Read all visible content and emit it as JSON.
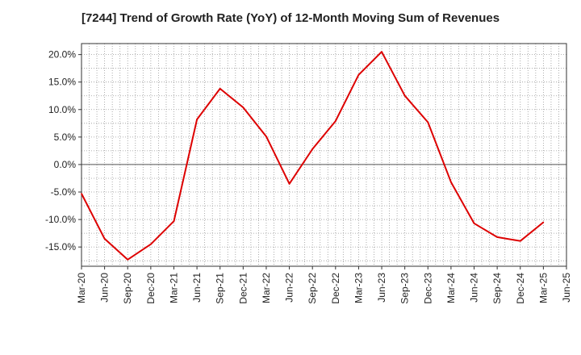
{
  "chart_data": {
    "type": "line",
    "title": "[7244]  Trend of Growth Rate (YoY) of 12-Month Moving Sum of Revenues",
    "xlabel": "",
    "ylabel": "",
    "x_ticks": [
      "Mar-20",
      "Jun-20",
      "Sep-20",
      "Dec-20",
      "Mar-21",
      "Jun-21",
      "Sep-21",
      "Dec-21",
      "Mar-22",
      "Jun-22",
      "Sep-22",
      "Dec-22",
      "Mar-23",
      "Jun-23",
      "Sep-23",
      "Dec-23",
      "Mar-24",
      "Jun-24",
      "Sep-24",
      "Dec-24",
      "Mar-25",
      "Jun-25"
    ],
    "y_ticks": [
      "20.0%",
      "15.0%",
      "10.0%",
      "5.0%",
      "0.0%",
      "-5.0%",
      "-10.0%",
      "-15.0%"
    ],
    "y_tick_values": [
      20,
      15,
      10,
      5,
      0,
      -5,
      -10,
      -15
    ],
    "ylim": [
      -18.5,
      22
    ],
    "grid": true,
    "series": [
      {
        "color": "#dd0000",
        "x": [
          "Mar-20",
          "Jun-20",
          "Sep-20",
          "Dec-20",
          "Mar-21",
          "Jun-21",
          "Sep-21",
          "Dec-21",
          "Mar-22",
          "Jun-22",
          "Sep-22",
          "Dec-22",
          "Mar-23",
          "Jun-23",
          "Sep-23",
          "Dec-23",
          "Mar-24",
          "Jun-24",
          "Sep-24",
          "Dec-24",
          "Mar-25"
        ],
        "values": [
          -5.3,
          -13.5,
          -17.3,
          -14.5,
          -10.3,
          8.2,
          13.8,
          10.4,
          5.1,
          -3.5,
          2.8,
          7.9,
          16.3,
          20.5,
          12.5,
          7.7,
          -3.2,
          -10.7,
          -13.2,
          -13.9,
          -10.5
        ]
      }
    ]
  }
}
